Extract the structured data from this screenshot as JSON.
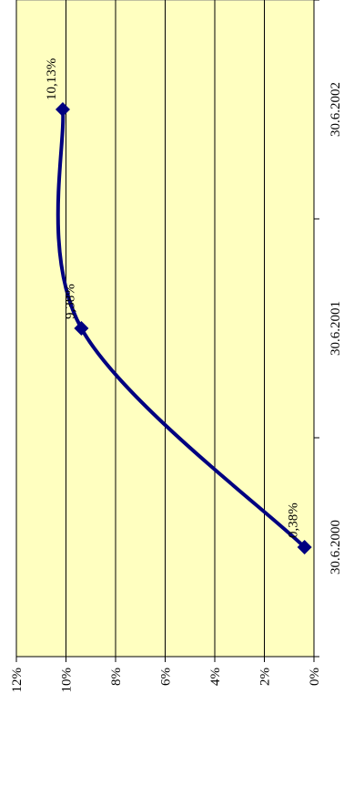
{
  "chart_data": {
    "type": "line",
    "orientation": "rotated-90-ccw",
    "categories": [
      "30.6.2000",
      "30.6.2001",
      "30.6.2002"
    ],
    "series": [
      {
        "values": [
          0.38,
          9.38,
          10.13
        ],
        "data_labels": [
          "0,38%",
          "9,38%",
          "10,13%"
        ],
        "color": "#000080",
        "marker": "diamond",
        "smooth": true
      }
    ],
    "y_ticks": [
      "0%",
      "2%",
      "4%",
      "6%",
      "8%",
      "10%",
      "12%"
    ],
    "ylim": [
      0,
      12
    ],
    "grid": true,
    "plot_background": "#FFFFC0",
    "title": "",
    "xlabel": "",
    "ylabel": ""
  }
}
